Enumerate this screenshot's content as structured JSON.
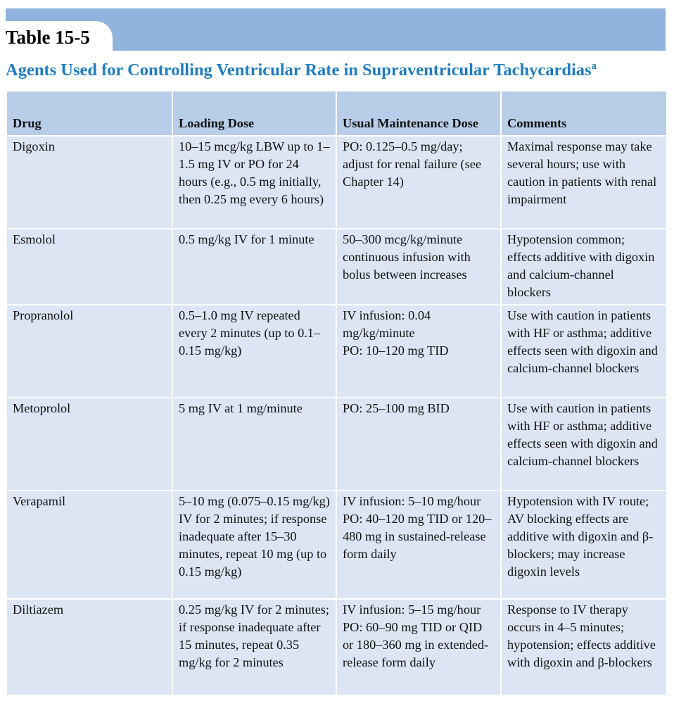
{
  "table_number": "Table 15-5",
  "title": "Agents Used for Controlling Ventricular Rate in Supraventricular Tachycardias",
  "title_footnote": "a",
  "colors": {
    "banner": "#8FB3DD",
    "header": "#B8CDE8",
    "cell": "#DCE5F3",
    "title": "#1E7CC0"
  },
  "columns": [
    "Drug",
    "Loading Dose",
    "Usual Maintenance Dose",
    "Comments"
  ],
  "rows": [
    [
      "Digoxin",
      "10–15 mcg/kg LBW up to 1–1.5 mg IV or PO for 24 hours (e.g., 0.5 mg initially, then 0.25 mg every 6 hours)",
      "PO: 0.125–0.5 mg/day; adjust for renal failure (see Chapter 14)",
      "Maximal response may take several hours; use with caution in patients with renal impairment"
    ],
    [
      "Esmolol",
      "0.5 mg/kg IV for 1 minute",
      "50–300 mcg/kg/minute continuous infusion with bolus between increases",
      "Hypotension common; effects additive with digoxin and calcium-channel blockers"
    ],
    [
      "Propranolol",
      "0.5–1.0 mg IV repeated every 2 minutes (up to 0.1–0.15 mg/kg)",
      "IV infusion: 0.04 mg/kg/minute\nPO: 10–120 mg TID",
      "Use with caution in patients with HF or asthma; additive effects seen with digoxin and calcium-channel blockers"
    ],
    [
      "Metoprolol",
      "5 mg IV at 1 mg/minute",
      "PO: 25–100 mg BID",
      "Use with caution in patients with HF or asthma; additive effects seen with digoxin and calcium-channel blockers"
    ],
    [
      "Verapamil",
      "5–10 mg (0.075–0.15 mg/kg) IV for 2 minutes; if response inadequate after 15–30 minutes, repeat 10 mg (up to 0.15 mg/kg)",
      "IV infusion: 5–10 mg/hour\nPO: 40–120 mg TID or 120–480 mg in sustained-release form daily",
      "Hypotension with IV route; AV blocking effects are additive with digoxin and β-blockers; may increase digoxin levels"
    ],
    [
      "Diltiazem",
      "0.25 mg/kg IV for 2 minutes; if response inadequate after 15 minutes, repeat 0.35 mg/kg for 2 minutes",
      "IV infusion: 5–15 mg/hour\nPO: 60–90 mg TID or QID or 180–360 mg in extended-release form daily",
      "Response to IV therapy occurs in 4–5 minutes; hypotension; effects additive with digoxin and β-blockers"
    ]
  ]
}
